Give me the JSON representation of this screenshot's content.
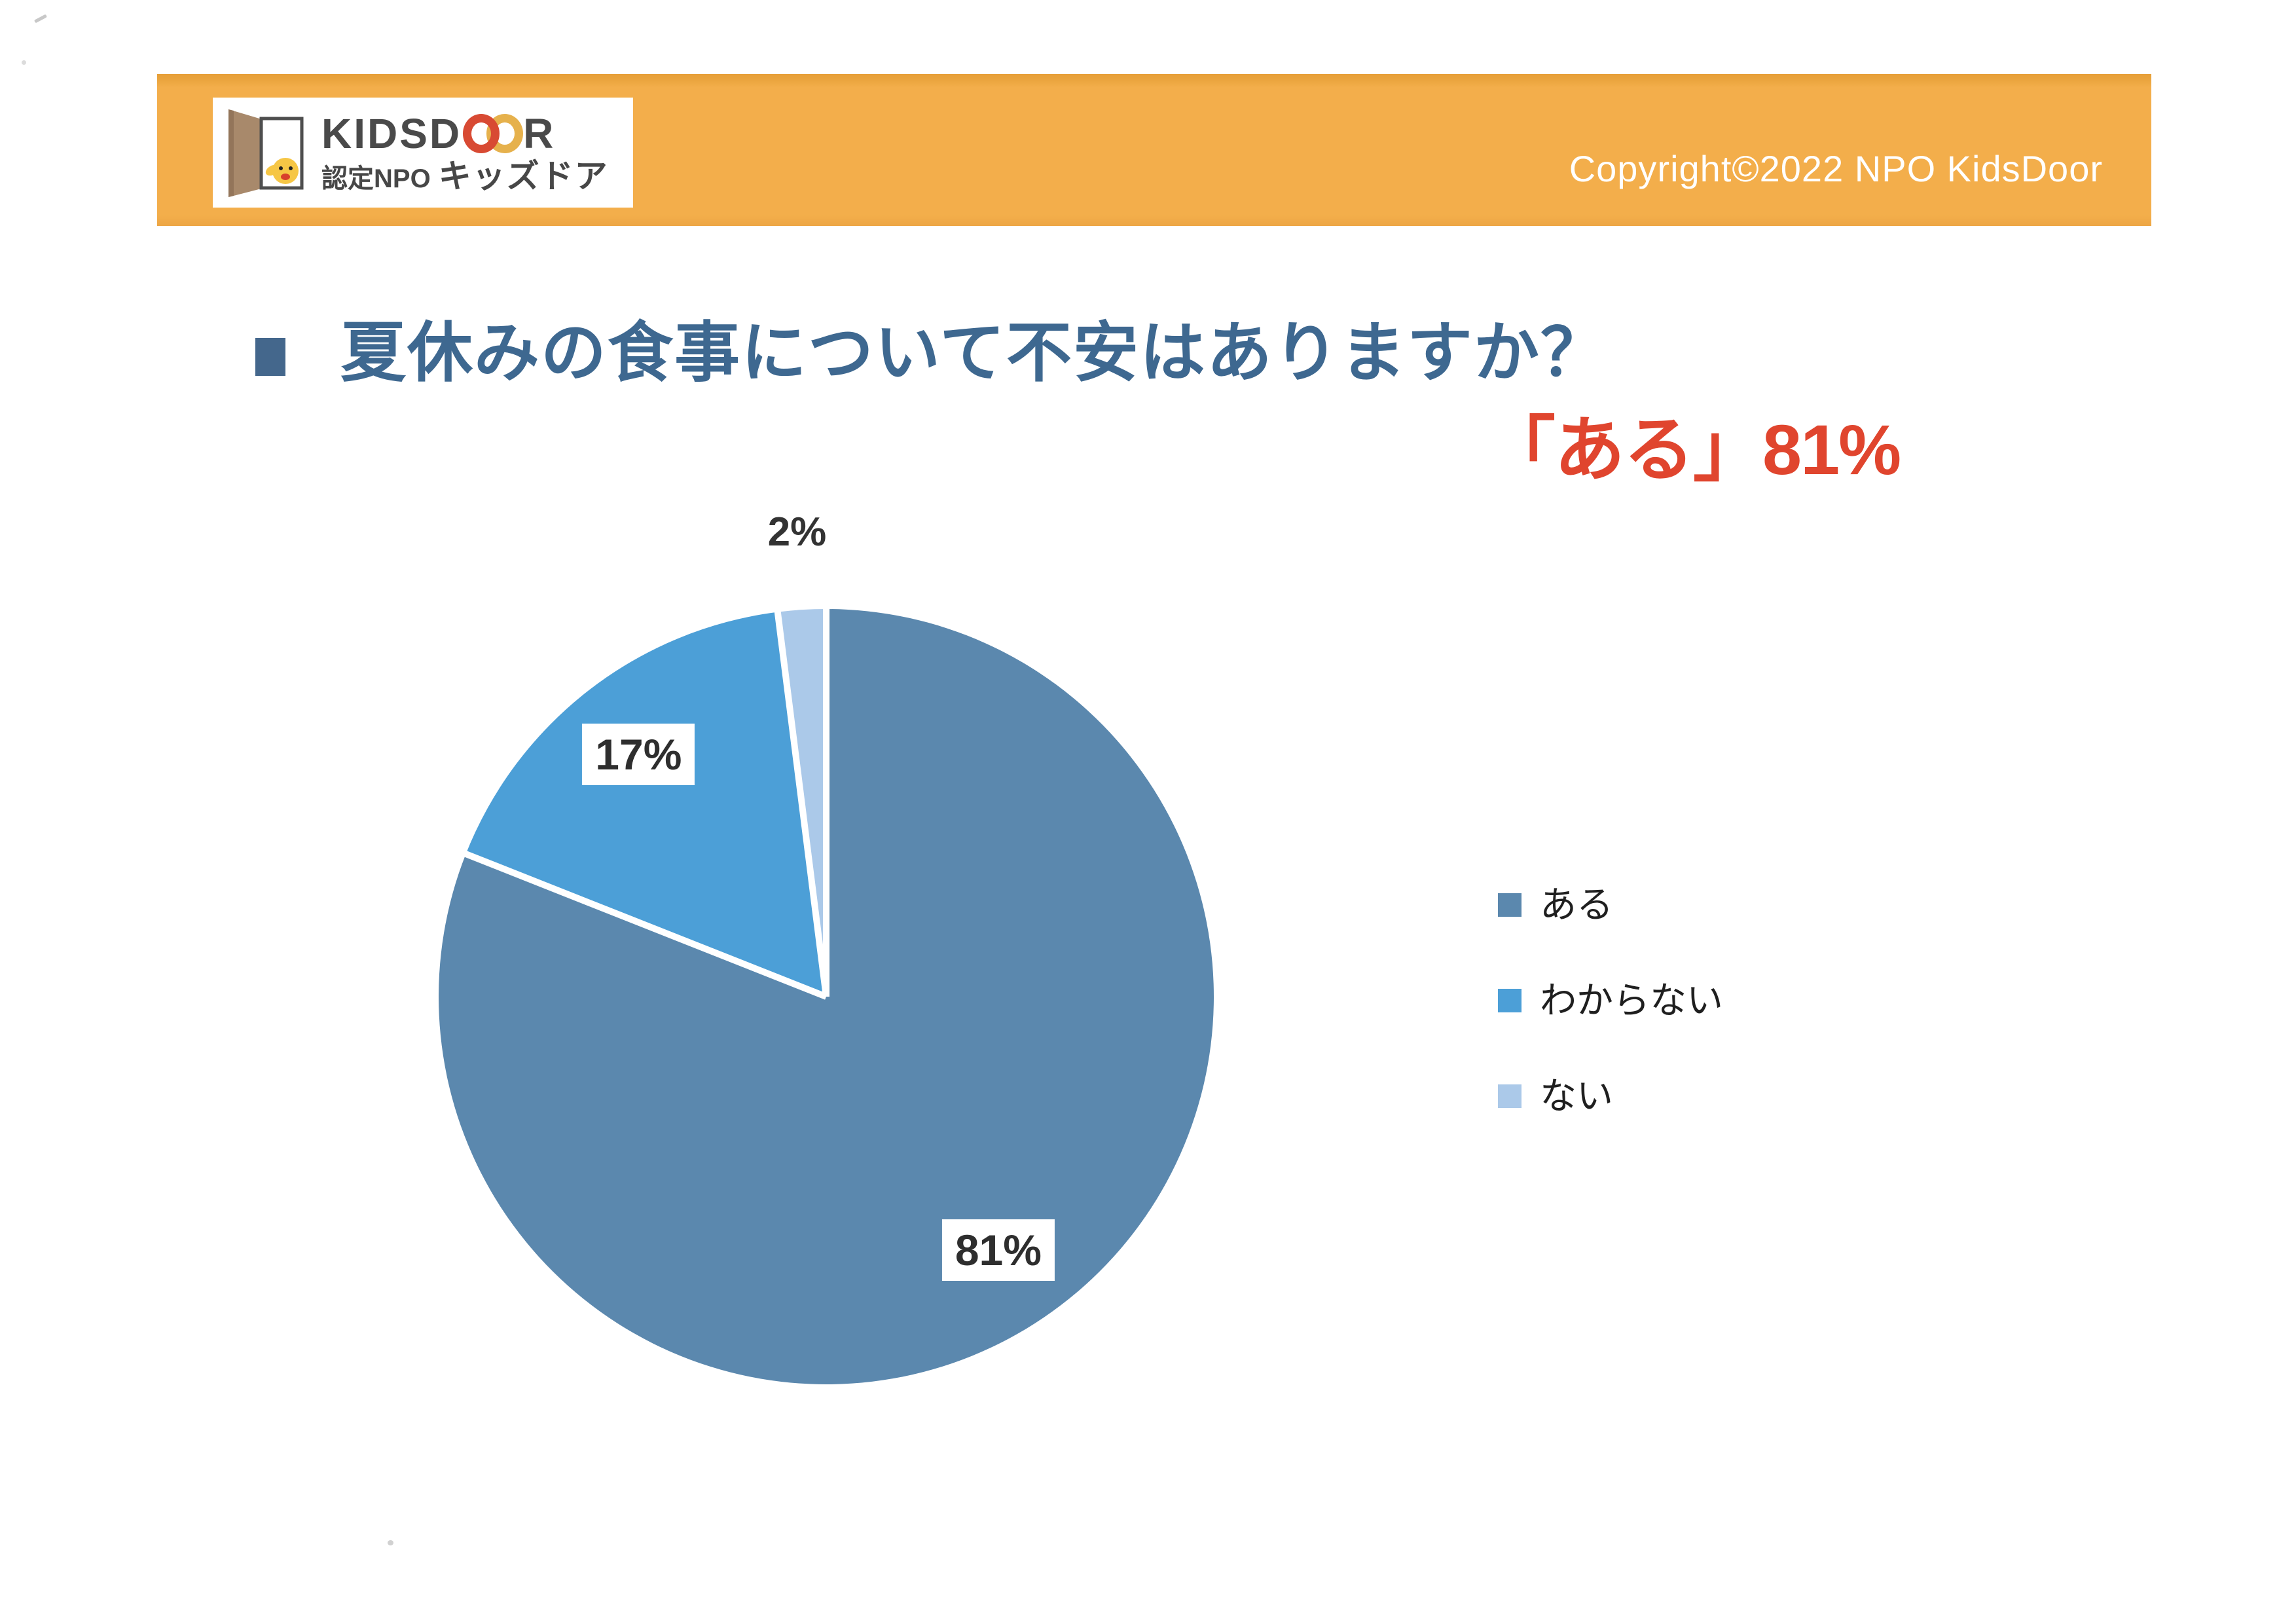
{
  "header": {
    "band_color": "#f3ae4b",
    "logo": {
      "brand_prefix": "KIDSD",
      "brand_suffix": "R",
      "subtitle_npo": "認定NPO",
      "subtitle_kana": "キッズドア"
    },
    "copyright": "Copyright©2022 NPO KidsDoor"
  },
  "title": {
    "text": "夏休みの食事について不安はありますか？",
    "color": "#3e6890",
    "bullet_color": "#44678c"
  },
  "highlight": {
    "text": "「ある」81%",
    "color": "#e0452e"
  },
  "chart_data": {
    "type": "pie",
    "title": "夏休みの食事について不安はありますか？",
    "categories": [
      "ある",
      "わからない",
      "ない"
    ],
    "values": [
      81,
      17,
      2
    ],
    "unit": "%",
    "data_labels": [
      "81%",
      "17%",
      "2%"
    ],
    "colors": [
      "#5b88ae",
      "#4c9fd7",
      "#abc9e9"
    ],
    "separator_color": "#ffffff",
    "start_angle_deg": 0,
    "direction": "clockwise",
    "legend_position": "right",
    "small_slice_label_outside_threshold": 5
  }
}
